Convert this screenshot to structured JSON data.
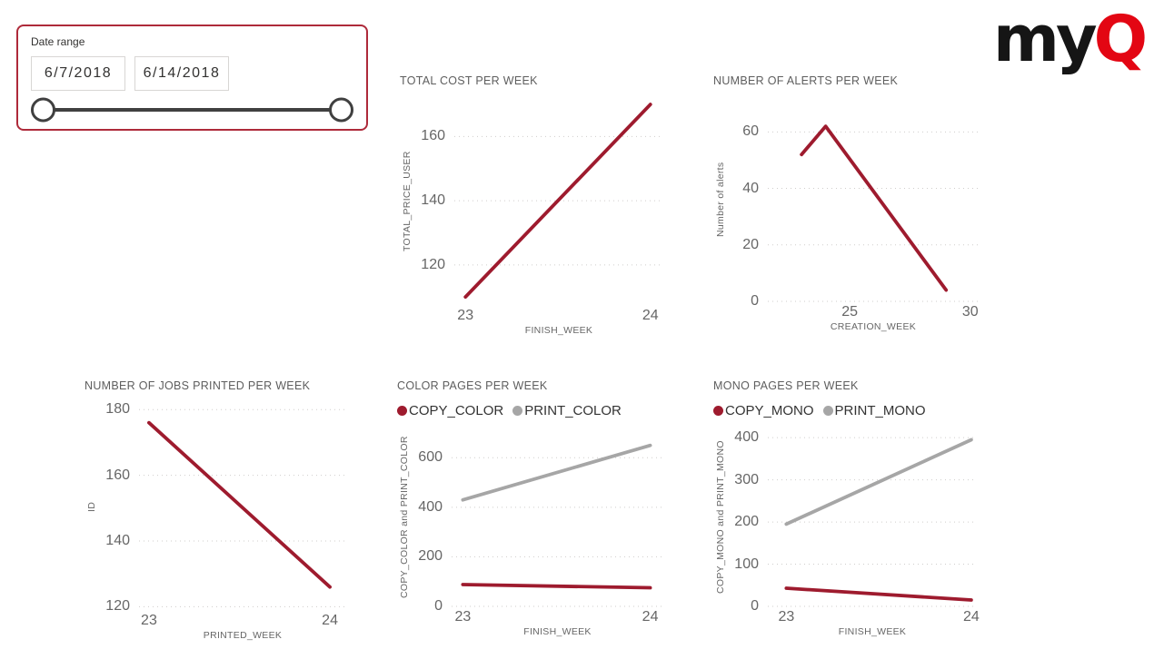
{
  "slicer": {
    "label": "Date range",
    "start_date": "6/7/2018",
    "end_date": "6/14/2018"
  },
  "logo": {
    "text_black": "my",
    "text_red": "Q"
  },
  "colors": {
    "brand_red": "#e30613",
    "line_red": "#9e1b2e",
    "line_gray": "#a6a6a6",
    "slicer_border": "#ae2a3a",
    "slider": "#404040",
    "axis_text": "#666666",
    "legend_text": "#333333",
    "gridline": "#cfcdcb"
  },
  "chart_data": [
    {
      "type": "line",
      "title": "TOTAL COST PER WEEK",
      "xlabel": "FINISH_WEEK",
      "ylabel": "TOTAL_PRICE_USER",
      "x_ticks": [
        23,
        24
      ],
      "y_ticks": [
        120,
        140,
        160
      ],
      "xlim": [
        22.94,
        24.07
      ],
      "ylim": [
        107.5,
        172
      ],
      "grid": true,
      "legend": null,
      "series": [
        {
          "name": "TOTAL_PRICE_USER",
          "color": "#9e1b2e",
          "x": [
            23,
            24
          ],
          "y": [
            110,
            170
          ]
        }
      ]
    },
    {
      "type": "line",
      "title": "NUMBER OF ALERTS PER WEEK",
      "xlabel": "CREATION_WEEK",
      "ylabel": "Number of alerts",
      "x_ticks": [
        25,
        30
      ],
      "y_ticks": [
        0,
        20,
        40,
        60
      ],
      "xlim": [
        21.6,
        30.35
      ],
      "ylim": [
        0,
        72
      ],
      "grid": true,
      "legend": null,
      "series": [
        {
          "name": "Number of alerts",
          "color": "#9e1b2e",
          "x": [
            23,
            24,
            29
          ],
          "y": [
            52,
            62,
            4
          ]
        }
      ]
    },
    {
      "type": "line",
      "title": "NUMBER OF JOBS PRINTED PER WEEK",
      "xlabel": "PRINTED_WEEK",
      "ylabel": "ID",
      "x_ticks": [
        23,
        24
      ],
      "y_ticks": [
        120,
        140,
        160,
        180
      ],
      "xlim": [
        22.945,
        24.09
      ],
      "ylim": [
        119,
        182
      ],
      "grid": true,
      "legend": null,
      "series": [
        {
          "name": "ID",
          "color": "#9e1b2e",
          "x": [
            23,
            24
          ],
          "y": [
            176,
            126
          ]
        }
      ]
    },
    {
      "type": "line",
      "title": "COLOR PAGES PER WEEK",
      "xlabel": "FINISH_WEEK",
      "ylabel": "COPY_COLOR and PRINT_COLOR",
      "x_ticks": [
        23,
        24
      ],
      "y_ticks": [
        0,
        200,
        400,
        600
      ],
      "xlim": [
        22.94,
        24.07
      ],
      "ylim": [
        0,
        722
      ],
      "grid": true,
      "legend": [
        "COPY_COLOR",
        "PRINT_COLOR"
      ],
      "series": [
        {
          "name": "COPY_COLOR",
          "color": "#9e1b2e",
          "x": [
            23,
            24
          ],
          "y": [
            88,
            75
          ]
        },
        {
          "name": "PRINT_COLOR",
          "color": "#a6a6a6",
          "x": [
            23,
            24
          ],
          "y": [
            430,
            650
          ]
        }
      ]
    },
    {
      "type": "line",
      "title": "MONO PAGES PER WEEK",
      "xlabel": "FINISH_WEEK",
      "ylabel": "COPY_MONO and PRINT_MONO",
      "x_ticks": [
        23,
        24
      ],
      "y_ticks": [
        0,
        100,
        200,
        300,
        400
      ],
      "xlim": [
        22.9,
        24.03
      ],
      "ylim": [
        0,
        424
      ],
      "grid": true,
      "legend": [
        "COPY_MONO",
        "PRINT_MONO"
      ],
      "series": [
        {
          "name": "COPY_MONO",
          "color": "#9e1b2e",
          "x": [
            23,
            24
          ],
          "y": [
            43,
            15
          ]
        },
        {
          "name": "PRINT_MONO",
          "color": "#a6a6a6",
          "x": [
            23,
            24
          ],
          "y": [
            195,
            395
          ]
        }
      ]
    }
  ]
}
